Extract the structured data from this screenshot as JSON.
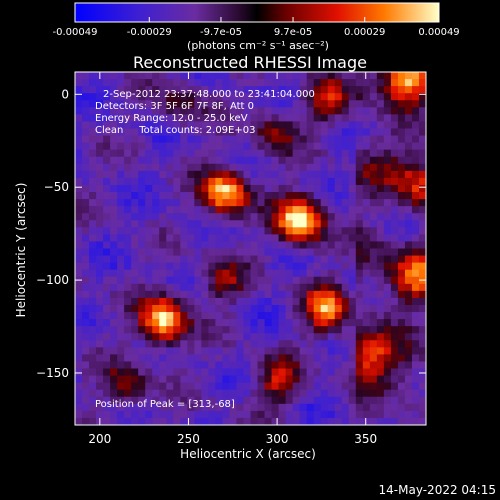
{
  "colorbar": {
    "tick_labels": [
      "-0.00049",
      "-0.00029",
      "-9.7e-05",
      "9.7e-05",
      "0.00029",
      "0.00049"
    ],
    "tick_values": [
      -0.00049,
      -0.00029,
      -9.7e-05,
      9.7e-05,
      0.00029,
      0.00049
    ],
    "range": [
      -0.00049,
      0.00049
    ],
    "units": "(photons cm⁻² s⁻¹ asec⁻²)"
  },
  "chart_data": {
    "type": "heatmap",
    "title": "Reconstructed RHESSI Image",
    "xlabel": "Heliocentric X (arcsec)",
    "ylabel": "Heliocentric Y (arcsec)",
    "xlim": [
      186,
      384
    ],
    "ylim": [
      -178,
      12
    ],
    "xticks": [
      200,
      250,
      300,
      350
    ],
    "yticks": [
      0,
      -50,
      -100,
      -150
    ],
    "colormap": "rhessi-blue-purple-red-yellow",
    "sources": [
      {
        "x": 313,
        "y": -68,
        "peak": 1.0
      },
      {
        "x": 271,
        "y": -53,
        "peak": 0.85
      },
      {
        "x": 236,
        "y": -122,
        "peak": 0.9
      },
      {
        "x": 328,
        "y": -115,
        "peak": 0.7
      },
      {
        "x": 373,
        "y": 8,
        "peak": 0.65
      },
      {
        "x": 330,
        "y": -3,
        "peak": 0.45
      },
      {
        "x": 215,
        "y": -158,
        "peak": 0.4
      },
      {
        "x": 300,
        "y": -155,
        "peak": 0.45
      },
      {
        "x": 380,
        "y": -50,
        "peak": 0.4
      },
      {
        "x": 378,
        "y": -100,
        "peak": 0.45
      },
      {
        "x": 270,
        "y": -100,
        "peak": 0.35
      },
      {
        "x": 298,
        "y": -20,
        "peak": 0.35
      },
      {
        "x": 246,
        "y": -5,
        "peak": 0.3
      },
      {
        "x": 353,
        "y": -140,
        "peak": 0.4
      }
    ],
    "annotations": {
      "time": "2-Sep-2012 23:37:48.000 to 23:41:04.000",
      "detectors": "Detectors: 3F 5F 6F 7F 8F, Att 0",
      "energy": "Energy Range: 12.0 - 25.0 keV",
      "clean": "Clean     Total counts: 2.09E+03",
      "peak": "Position of Peak = [313,-68]"
    }
  },
  "footer": {
    "date": "14-May-2022 04:15"
  }
}
